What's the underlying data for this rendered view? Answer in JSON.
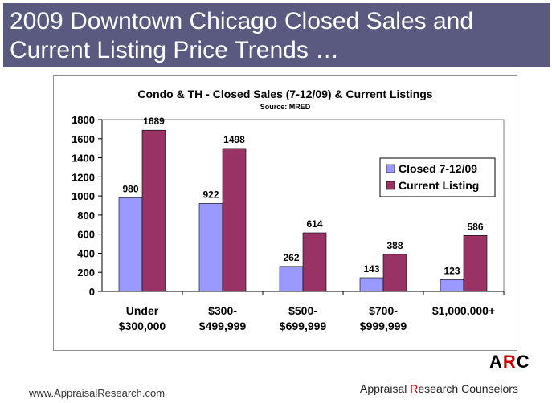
{
  "header": {
    "line1": "2009 Downtown Chicago Closed Sales and",
    "line2": "Current Listing Price Trends …"
  },
  "footer": {
    "url": "www.AppraisalResearch.com",
    "logo_a": "A",
    "logo_r": "R",
    "logo_c": "C",
    "company_a": "A",
    "company_a_rest": "ppraisal ",
    "company_r": "R",
    "company_r_rest": "esearch ",
    "company_c": "C",
    "company_c_rest": "ounselors"
  },
  "colors": {
    "banner": "#5a5a80",
    "closed": "#9999ff",
    "listing": "#993366",
    "plot_bg": "#ffffff",
    "logo_accent": "#cc0000"
  },
  "chart_data": {
    "type": "bar",
    "title": "Condo & TH - Closed Sales (7-12/09) & Current Listings",
    "subtitle": "Source: MRED",
    "categories": [
      [
        "Under",
        "$300,000"
      ],
      [
        "$300-",
        "$499,999"
      ],
      [
        "$500-",
        "$699,999"
      ],
      [
        "$700-",
        "$999,999"
      ],
      [
        "$1,000,000+"
      ]
    ],
    "series": [
      {
        "name": "Closed 7-12/09",
        "values": [
          980,
          922,
          262,
          143,
          123
        ]
      },
      {
        "name": "Current Listing",
        "values": [
          1689,
          1498,
          614,
          388,
          586
        ]
      }
    ],
    "ylim": [
      0,
      1800
    ],
    "yticks": [
      0,
      200,
      400,
      600,
      800,
      1000,
      1200,
      1400,
      1600,
      1800
    ],
    "grid": false,
    "legend_position": "right"
  }
}
